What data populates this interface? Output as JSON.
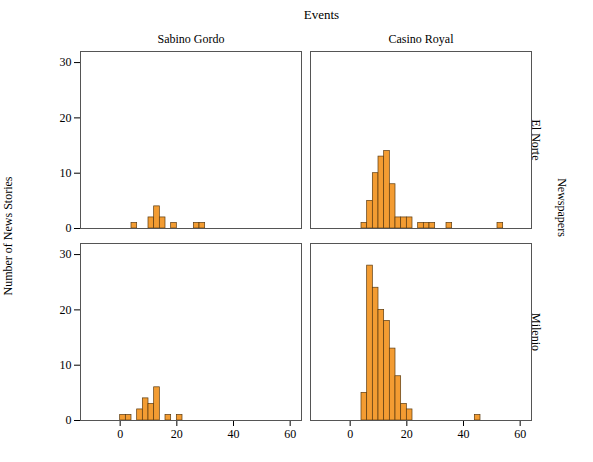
{
  "chart_data": {
    "type": "histogram",
    "facet_x_label": "Events",
    "facet_y_label": "Newspapers",
    "ylabel": "Number of News Stories",
    "columns": [
      "Sabino Gordo",
      "Casino Royal"
    ],
    "rows": [
      "El Norte",
      "Milenio"
    ],
    "color": "#f39c32",
    "xlim": [
      -14,
      64
    ],
    "xticks": [
      0,
      20,
      40,
      60
    ],
    "ylim": [
      0,
      32
    ],
    "yticks": [
      0,
      10,
      20,
      30
    ],
    "grid": false,
    "bins": [
      0,
      2,
      4,
      6,
      8,
      10,
      12,
      14,
      16,
      18,
      20,
      22,
      24,
      26,
      28,
      30,
      32,
      34,
      36,
      38,
      40,
      42,
      44,
      46,
      48,
      50,
      52,
      54
    ],
    "panels": [
      {
        "column": "Sabino Gordo",
        "row": "El Norte",
        "values": [
          0,
          0,
          1,
          0,
          0,
          2,
          4,
          2,
          0,
          1,
          0,
          0,
          0,
          1,
          1,
          0,
          0,
          0,
          0,
          0,
          0,
          0,
          0,
          0,
          0,
          0,
          0
        ]
      },
      {
        "column": "Casino Royal",
        "row": "El Norte",
        "values": [
          0,
          0,
          1,
          5,
          10,
          13,
          14,
          8,
          2,
          2,
          2,
          0,
          1,
          1,
          1,
          0,
          0,
          1,
          0,
          0,
          0,
          0,
          0,
          0,
          0,
          0,
          1
        ]
      },
      {
        "column": "Sabino Gordo",
        "row": "Milenio",
        "values": [
          1,
          1,
          0,
          2,
          4,
          3,
          6,
          0,
          1,
          0,
          1,
          0,
          0,
          0,
          0,
          0,
          0,
          0,
          0,
          0,
          0,
          0,
          0,
          0,
          0,
          0,
          0
        ]
      },
      {
        "column": "Casino Royal",
        "row": "Milenio",
        "values": [
          0,
          0,
          5,
          28,
          24,
          20,
          18,
          13,
          8,
          3,
          2,
          0,
          0,
          0,
          0,
          0,
          0,
          0,
          0,
          0,
          0,
          0,
          1,
          0,
          0,
          0,
          0
        ]
      }
    ]
  }
}
